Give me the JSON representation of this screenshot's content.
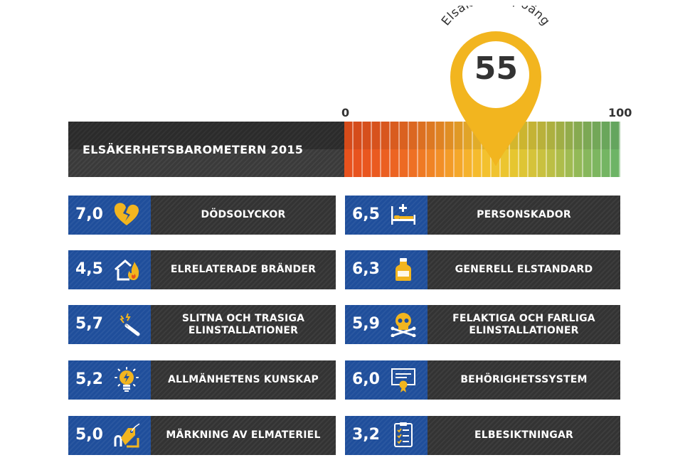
{
  "header": {
    "title": "ELSÄKERHETSBAROMETERN 2015"
  },
  "gauge": {
    "min_label": "0",
    "max_label": "100",
    "score_caption": "Elsäkerhetspoäng",
    "score_value": "55",
    "score_level": 55,
    "segment_colors": [
      "#e8521d",
      "#e8531e",
      "#e9561f",
      "#ea5a20",
      "#eb5f21",
      "#ec6422",
      "#ed6a23",
      "#ee7024",
      "#ef7a24",
      "#f08425",
      "#f28f27",
      "#f39b28",
      "#f4a72a",
      "#f5b22c",
      "#f5bb2d",
      "#f3c12e",
      "#f0c32f",
      "#ecc52f",
      "#e6c630",
      "#dec534",
      "#d5c33a",
      "#c9c13f",
      "#bcbf45",
      "#aebd4b",
      "#a0bb52",
      "#93b957",
      "#87b75c",
      "#7db660",
      "#74b563",
      "#6db466"
    ],
    "pin_color": "#f2b51f"
  },
  "items": [
    {
      "score": "7,0",
      "label": "DÖDSOLYCKOR",
      "icon": "broken-heart-icon"
    },
    {
      "score": "6,5",
      "label": "PERSONSKADOR",
      "icon": "hospital-bed-icon"
    },
    {
      "score": "4,5",
      "label": "ELRELATERADE BRÄNDER",
      "icon": "house-fire-icon"
    },
    {
      "score": "6,3",
      "label": "GENERELL ELSTANDARD",
      "icon": "milk-bottle-icon"
    },
    {
      "score": "5,7",
      "label": "SLITNA OCH TRASIGA\nELINSTALLATIONER",
      "icon": "broken-cable-icon"
    },
    {
      "score": "5,9",
      "label": "FELAKTIGA OCH FARLIGA\nELINSTALLATIONER",
      "icon": "skull-crossbones-icon"
    },
    {
      "score": "5,2",
      "label": "ALLMÄNHETENS KUNSKAP",
      "icon": "lightbulb-icon"
    },
    {
      "score": "6,0",
      "label": "BEHÖRIGHETSSYSTEM",
      "icon": "certificate-icon"
    },
    {
      "score": "5,0",
      "label": "MÄRKNING AV ELMATERIEL",
      "icon": "tagged-cable-icon"
    },
    {
      "score": "3,2",
      "label": "ELBESIKTNINGAR",
      "icon": "checklist-icon"
    }
  ],
  "colors": {
    "score_bg": "#1f4e9b",
    "label_bg": "#333333",
    "icon_yellow": "#f2b51f"
  }
}
